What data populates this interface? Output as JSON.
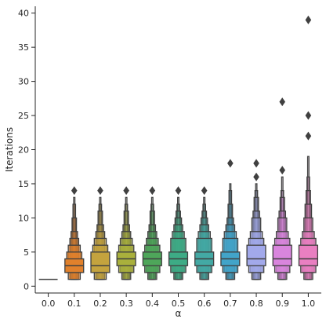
{
  "chart_data": {
    "type": "boxen",
    "title": "",
    "xlabel": "α",
    "ylabel": "Iterations",
    "ylim": [
      -1,
      41
    ],
    "yticks": [
      0,
      5,
      10,
      15,
      20,
      25,
      30,
      35,
      40
    ],
    "grid": false,
    "legend": "none",
    "categories": [
      "0.0",
      "0.1",
      "0.2",
      "0.3",
      "0.4",
      "0.5",
      "0.6",
      "0.7",
      "0.8",
      "0.9",
      "1.0"
    ],
    "colors": [
      "#3274a1",
      "#e1812c",
      "#c4a33e",
      "#a9b03c",
      "#4ea65a",
      "#3dab85",
      "#43a9a4",
      "#42a4c9",
      "#a2a9eb",
      "#d985dd",
      "#e97fc1"
    ],
    "series": [
      {
        "category": "0.0",
        "median": 1,
        "boxes": [],
        "outliers": []
      },
      {
        "category": "0.1",
        "median": 3,
        "boxes": [
          [
            2,
            4
          ],
          [
            2,
            5
          ],
          [
            1,
            6
          ],
          [
            1,
            7
          ],
          [
            1,
            8
          ],
          [
            1,
            10
          ],
          [
            1,
            12
          ],
          [
            1,
            13
          ]
        ],
        "outliers": [
          14
        ]
      },
      {
        "category": "0.2",
        "median": 3,
        "boxes": [
          [
            2,
            5
          ],
          [
            2,
            6
          ],
          [
            1,
            7
          ],
          [
            1,
            8
          ],
          [
            1,
            9
          ],
          [
            1,
            11
          ],
          [
            1,
            12
          ],
          [
            1,
            13
          ]
        ],
        "outliers": [
          14
        ]
      },
      {
        "category": "0.3",
        "median": 4,
        "boxes": [
          [
            3,
            5
          ],
          [
            2,
            6
          ],
          [
            2,
            7
          ],
          [
            1,
            8
          ],
          [
            1,
            9
          ],
          [
            1,
            11
          ],
          [
            1,
            12
          ],
          [
            1,
            13
          ]
        ],
        "outliers": [
          14
        ]
      },
      {
        "category": "0.4",
        "median": 4,
        "boxes": [
          [
            3,
            5
          ],
          [
            2,
            6
          ],
          [
            2,
            7
          ],
          [
            1,
            8
          ],
          [
            1,
            9
          ],
          [
            1,
            11
          ],
          [
            1,
            12
          ],
          [
            1,
            13
          ]
        ],
        "outliers": [
          14
        ]
      },
      {
        "category": "0.5",
        "median": 4,
        "boxes": [
          [
            3,
            5
          ],
          [
            2,
            7
          ],
          [
            2,
            8
          ],
          [
            1,
            9
          ],
          [
            1,
            10
          ],
          [
            1,
            11
          ],
          [
            1,
            12
          ],
          [
            1,
            13
          ]
        ],
        "outliers": [
          14
        ]
      },
      {
        "category": "0.6",
        "median": 4,
        "boxes": [
          [
            3,
            5
          ],
          [
            2,
            7
          ],
          [
            2,
            8
          ],
          [
            1,
            9
          ],
          [
            1,
            10
          ],
          [
            1,
            11
          ],
          [
            1,
            12
          ],
          [
            1,
            13
          ]
        ],
        "outliers": [
          14
        ]
      },
      {
        "category": "0.7",
        "median": 4,
        "boxes": [
          [
            3,
            5
          ],
          [
            2,
            7
          ],
          [
            2,
            8
          ],
          [
            1,
            9
          ],
          [
            1,
            10
          ],
          [
            1,
            12
          ],
          [
            1,
            14
          ],
          [
            1,
            15
          ]
        ],
        "outliers": [
          18
        ]
      },
      {
        "category": "0.8",
        "median": 4,
        "boxes": [
          [
            3,
            6
          ],
          [
            2,
            7
          ],
          [
            2,
            8
          ],
          [
            1,
            10
          ],
          [
            1,
            11
          ],
          [
            1,
            13
          ],
          [
            1,
            14
          ],
          [
            1,
            15
          ]
        ],
        "outliers": [
          16,
          18
        ]
      },
      {
        "category": "0.9",
        "median": 4,
        "boxes": [
          [
            3,
            6
          ],
          [
            2,
            7
          ],
          [
            2,
            8
          ],
          [
            1,
            10
          ],
          [
            1,
            11
          ],
          [
            1,
            13
          ],
          [
            1,
            14
          ],
          [
            1,
            16
          ]
        ],
        "outliers": [
          17,
          27
        ]
      },
      {
        "category": "1.0",
        "median": 4,
        "boxes": [
          [
            3,
            6
          ],
          [
            2,
            7
          ],
          [
            2,
            8
          ],
          [
            1,
            10
          ],
          [
            1,
            12
          ],
          [
            1,
            14
          ],
          [
            1,
            16
          ],
          [
            1,
            19
          ]
        ],
        "outliers": [
          22,
          25,
          39
        ]
      }
    ]
  }
}
